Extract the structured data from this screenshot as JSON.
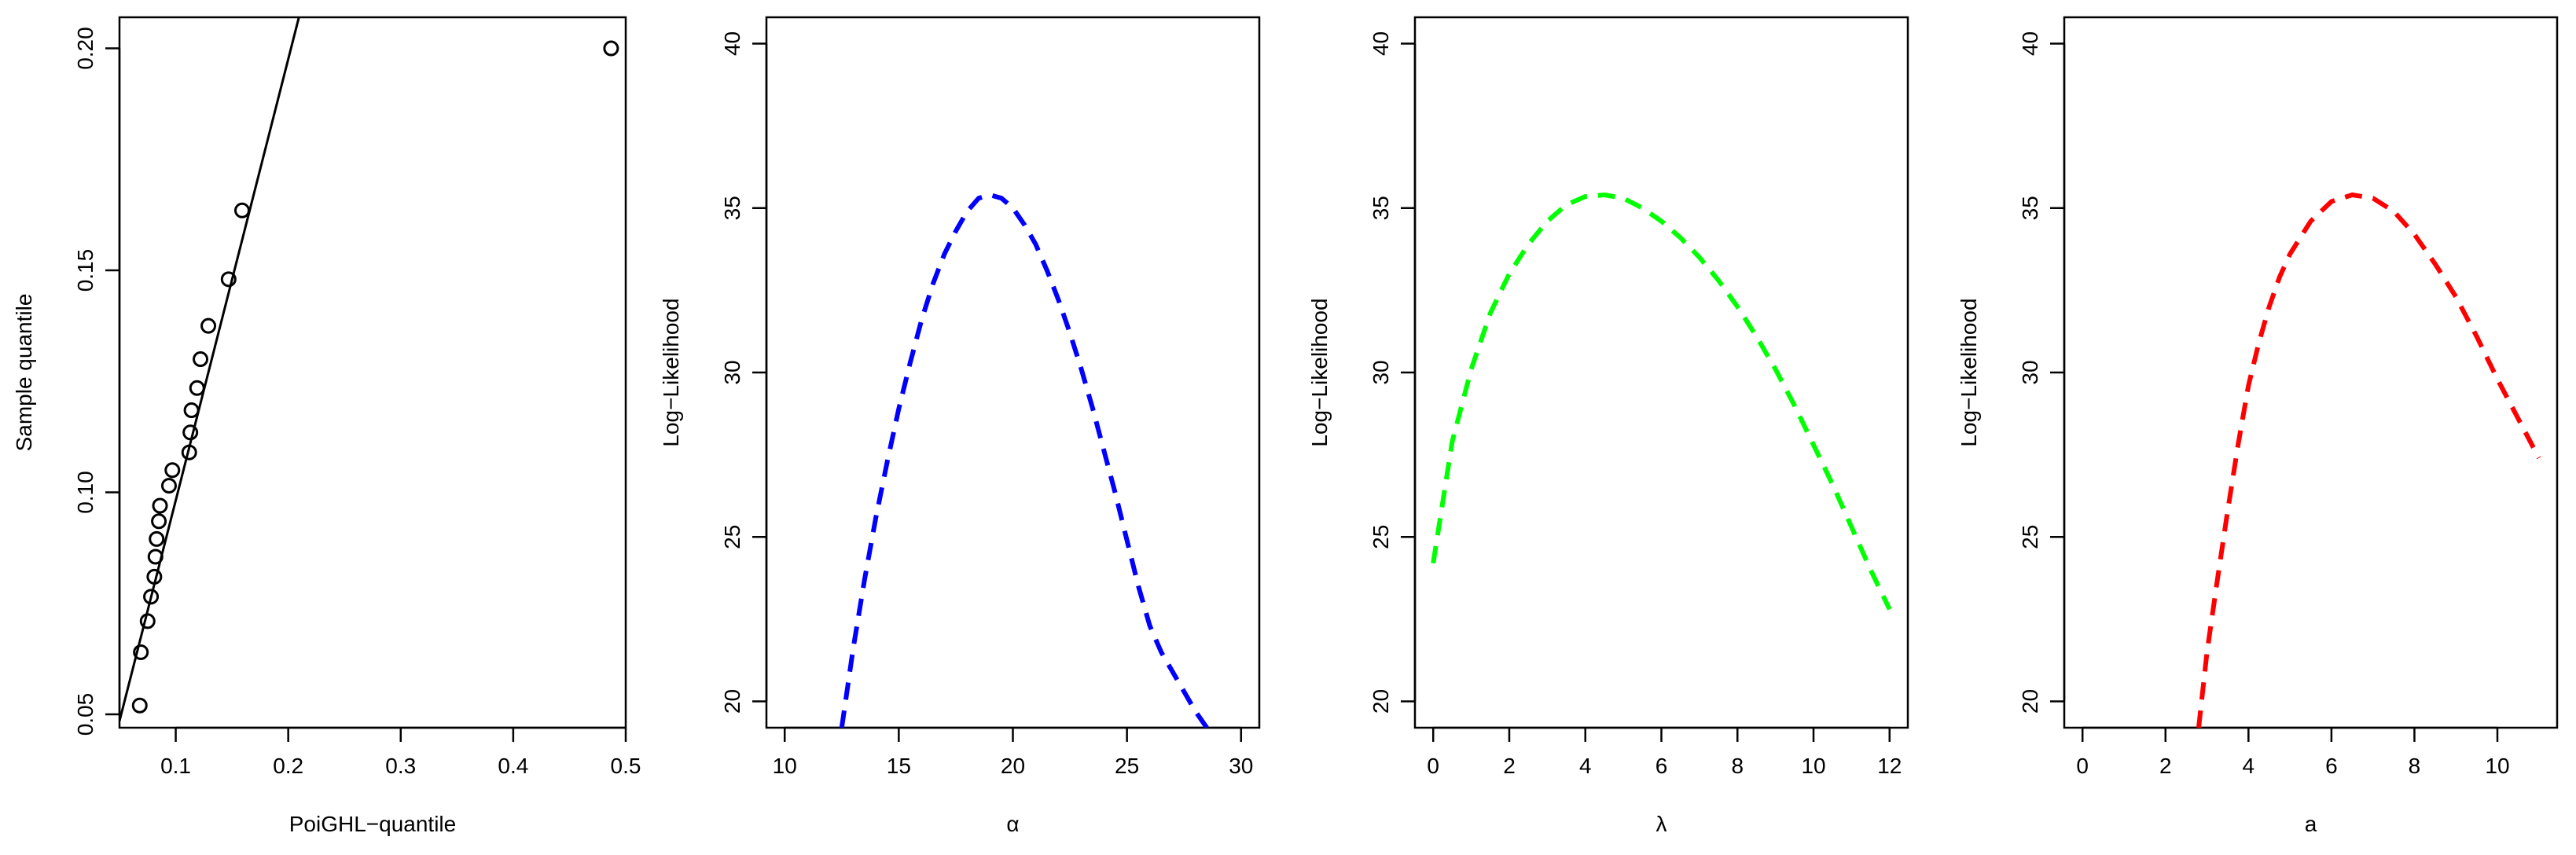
{
  "chart_data": [
    {
      "type": "scatter",
      "title": "",
      "xlabel": "PoiGHL−quantile",
      "ylabel": "Sample quantile",
      "xlim": [
        0.05,
        0.5
      ],
      "ylim": [
        0.047,
        0.207
      ],
      "xticks": [
        "0.1",
        "0.2",
        "0.3",
        "0.4",
        "0.5"
      ],
      "yticks": [
        "0.05",
        "0.10",
        "0.15",
        "0.20"
      ],
      "x_tick_values": [
        0.1,
        0.2,
        0.3,
        0.4,
        0.5
      ],
      "y_tick_values": [
        0.05,
        0.1,
        0.15,
        0.2
      ],
      "points": [
        {
          "x": 0.068,
          "y": 0.052
        },
        {
          "x": 0.069,
          "y": 0.064
        },
        {
          "x": 0.075,
          "y": 0.071
        },
        {
          "x": 0.078,
          "y": 0.0765
        },
        {
          "x": 0.081,
          "y": 0.081
        },
        {
          "x": 0.082,
          "y": 0.0855
        },
        {
          "x": 0.083,
          "y": 0.0895
        },
        {
          "x": 0.085,
          "y": 0.0935
        },
        {
          "x": 0.086,
          "y": 0.097
        },
        {
          "x": 0.094,
          "y": 0.1015
        },
        {
          "x": 0.097,
          "y": 0.105
        },
        {
          "x": 0.112,
          "y": 0.109
        },
        {
          "x": 0.113,
          "y": 0.1135
        },
        {
          "x": 0.114,
          "y": 0.1185
        },
        {
          "x": 0.119,
          "y": 0.1235
        },
        {
          "x": 0.122,
          "y": 0.13
        },
        {
          "x": 0.129,
          "y": 0.1375
        },
        {
          "x": 0.147,
          "y": 0.148
        },
        {
          "x": 0.159,
          "y": 0.1635
        },
        {
          "x": 0.487,
          "y": 0.2
        }
      ],
      "reference_line": {
        "x": [
          0.05,
          0.21
        ],
        "y": [
          0.0485,
          0.2075
        ]
      },
      "grid": false,
      "legend": "none"
    },
    {
      "type": "line",
      "title": "",
      "xlabel": "α",
      "ylabel": "Log−Likelihood",
      "xlim": [
        9.2,
        30.8
      ],
      "ylim": [
        19.2,
        40.8
      ],
      "xticks": [
        "10",
        "15",
        "20",
        "25",
        "30"
      ],
      "yticks": [
        "20",
        "25",
        "30",
        "35",
        "40"
      ],
      "x_tick_values": [
        10,
        15,
        20,
        25,
        30
      ],
      "y_tick_values": [
        20,
        25,
        30,
        35,
        40
      ],
      "series": [
        {
          "color": "#0000ff",
          "style": "dashed",
          "x": [
            12.5,
            13.0,
            13.5,
            14.0,
            14.5,
            15.0,
            15.5,
            16.0,
            16.5,
            17.0,
            17.5,
            18.0,
            18.5,
            19.0,
            19.5,
            20.0,
            20.5,
            21.0,
            21.5,
            22.0,
            22.5,
            23.0,
            23.5,
            24.0,
            24.5,
            25.0,
            25.5,
            26.0,
            26.5,
            27.0,
            27.5,
            28.0,
            28.5
          ],
          "y": [
            19.2,
            21.6,
            23.7,
            25.6,
            27.3,
            28.9,
            30.3,
            31.6,
            32.7,
            33.6,
            34.3,
            34.9,
            35.3,
            35.4,
            35.3,
            35.0,
            34.5,
            33.9,
            33.1,
            32.2,
            31.2,
            30.1,
            28.9,
            27.6,
            26.3,
            24.9,
            23.5,
            22.3,
            21.5,
            20.9,
            20.3,
            19.7,
            19.2
          ]
        }
      ],
      "grid": false,
      "legend": "none"
    },
    {
      "type": "line",
      "title": "",
      "xlabel": "λ",
      "ylabel": "Log−Likelihood",
      "xlim": [
        -0.48,
        12.48
      ],
      "ylim": [
        19.2,
        40.8
      ],
      "xticks": [
        "0",
        "2",
        "4",
        "6",
        "8",
        "10",
        "12"
      ],
      "yticks": [
        "20",
        "25",
        "30",
        "35",
        "40"
      ],
      "x_tick_values": [
        0,
        2,
        4,
        6,
        8,
        10,
        12
      ],
      "y_tick_values": [
        20,
        25,
        30,
        35,
        40
      ],
      "series": [
        {
          "color": "#00ff00",
          "style": "dashed",
          "x": [
            0.0,
            0.5,
            1.0,
            1.5,
            2.0,
            2.5,
            3.0,
            3.5,
            4.0,
            4.5,
            5.0,
            5.5,
            6.0,
            6.5,
            7.0,
            7.5,
            8.0,
            8.5,
            9.0,
            9.5,
            10.0,
            10.5,
            11.0,
            11.5,
            12.0
          ],
          "y": [
            24.2,
            27.9,
            30.1,
            31.8,
            33.0,
            33.9,
            34.6,
            35.1,
            35.35,
            35.4,
            35.3,
            35.0,
            34.6,
            34.1,
            33.5,
            32.8,
            32.0,
            31.1,
            30.1,
            29.0,
            27.8,
            26.6,
            25.3,
            24.0,
            22.8
          ]
        }
      ],
      "grid": false,
      "legend": "none"
    },
    {
      "type": "line",
      "title": "",
      "xlabel": "a",
      "ylabel": "Log−Likelihood",
      "xlim": [
        -0.44,
        11.44
      ],
      "ylim": [
        19.2,
        40.8
      ],
      "xticks": [
        "0",
        "2",
        "4",
        "6",
        "8",
        "10"
      ],
      "yticks": [
        "20",
        "25",
        "30",
        "35",
        "40"
      ],
      "x_tick_values": [
        0,
        2,
        4,
        6,
        8,
        10
      ],
      "y_tick_values": [
        20,
        25,
        30,
        35,
        40
      ],
      "series": [
        {
          "color": "#ff0000",
          "style": "dashed",
          "x": [
            2.8,
            3.0,
            3.25,
            3.5,
            3.75,
            4.0,
            4.25,
            4.5,
            4.75,
            5.0,
            5.5,
            6.0,
            6.5,
            7.0,
            7.5,
            8.0,
            8.5,
            9.0,
            9.5,
            10.0,
            10.5,
            11.0
          ],
          "y": [
            19.2,
            21.5,
            23.7,
            25.8,
            27.8,
            29.6,
            30.9,
            32.0,
            32.9,
            33.6,
            34.6,
            35.2,
            35.4,
            35.3,
            34.9,
            34.2,
            33.3,
            32.3,
            31.1,
            29.8,
            28.6,
            27.4
          ]
        }
      ],
      "grid": false,
      "legend": "none"
    }
  ]
}
